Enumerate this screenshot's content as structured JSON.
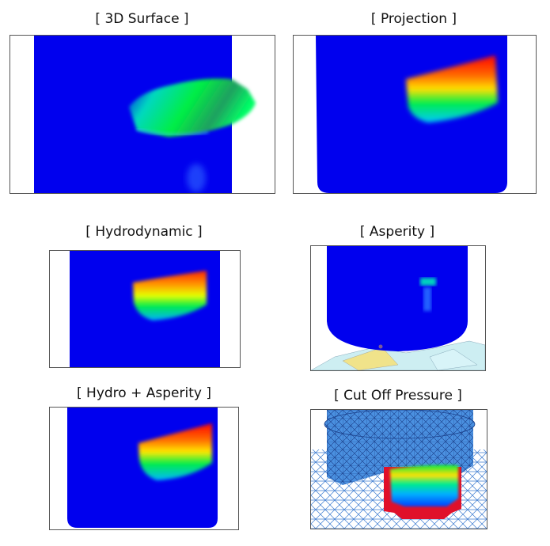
{
  "panels": [
    {
      "id": "3d-surface",
      "title": "[ 3D Surface ]"
    },
    {
      "id": "projection",
      "title": "[ Projection ]"
    },
    {
      "id": "hydrodynamic",
      "title": "[ Hydrodynamic ]"
    },
    {
      "id": "asperity",
      "title": "[ Asperity ]"
    },
    {
      "id": "hydro-asperity",
      "title": "[ Hydro + Asperity ]"
    },
    {
      "id": "cut-off-pressure",
      "title": "[ Cut Off Pressure ]"
    }
  ],
  "colors": {
    "background_blue": "#0000ee",
    "high": "#ff0000",
    "mid": "#00ee44",
    "mesh": "#2d7dd2",
    "cutoff": "#e0102a"
  }
}
